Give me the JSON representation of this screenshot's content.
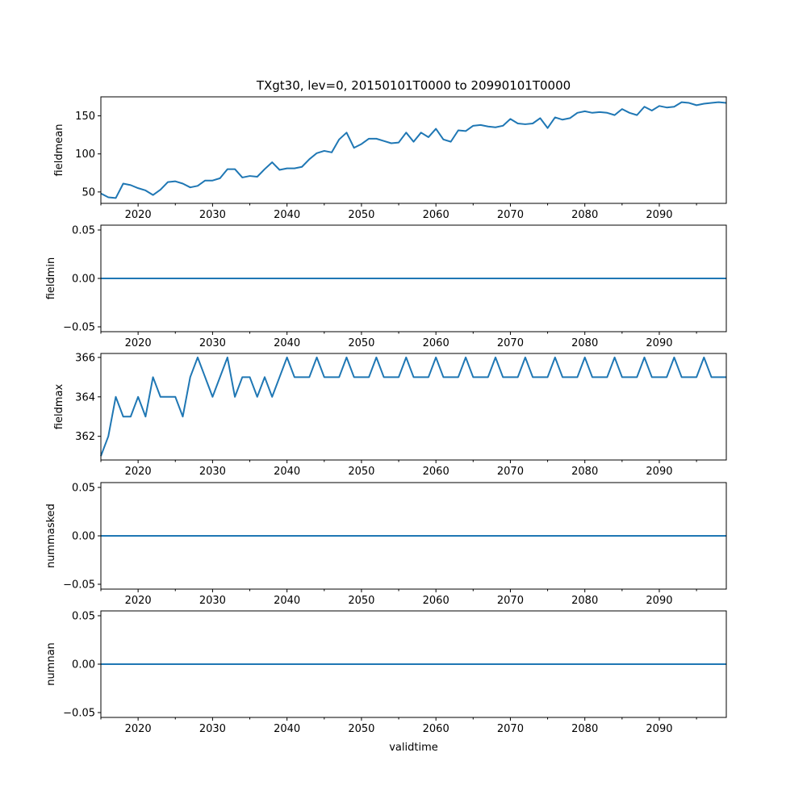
{
  "chart_data": [
    {
      "type": "line",
      "title": "TXgt30, lev=0, 20150101T0000 to 20990101T0000",
      "xlabel": "",
      "ylabel": "fieldmean",
      "xlim": [
        2015,
        2099
      ],
      "ylim": [
        35,
        175
      ],
      "xticks": [
        2020,
        2030,
        2040,
        2050,
        2060,
        2070,
        2080,
        2090
      ],
      "yticks": [
        50,
        100,
        150
      ],
      "x": [
        2015,
        2016,
        2017,
        2018,
        2019,
        2020,
        2021,
        2022,
        2023,
        2024,
        2025,
        2026,
        2027,
        2028,
        2029,
        2030,
        2031,
        2032,
        2033,
        2034,
        2035,
        2036,
        2037,
        2038,
        2039,
        2040,
        2041,
        2042,
        2043,
        2044,
        2045,
        2046,
        2047,
        2048,
        2049,
        2050,
        2051,
        2052,
        2053,
        2054,
        2055,
        2056,
        2057,
        2058,
        2059,
        2060,
        2061,
        2062,
        2063,
        2064,
        2065,
        2066,
        2067,
        2068,
        2069,
        2070,
        2071,
        2072,
        2073,
        2074,
        2075,
        2076,
        2077,
        2078,
        2079,
        2080,
        2081,
        2082,
        2083,
        2084,
        2085,
        2086,
        2087,
        2088,
        2089,
        2090,
        2091,
        2092,
        2093,
        2094,
        2095,
        2096,
        2097,
        2098,
        2099
      ],
      "series": [
        {
          "values": [
            48,
            43,
            42,
            61,
            59,
            55,
            52,
            46,
            53,
            63,
            64,
            61,
            56,
            58,
            65,
            65,
            68,
            80,
            80,
            69,
            71,
            70,
            80,
            89,
            79,
            81,
            81,
            83,
            93,
            101,
            104,
            102,
            119,
            128,
            108,
            113,
            120,
            120,
            117,
            114,
            115,
            128,
            116,
            128,
            122,
            133,
            119,
            116,
            131,
            130,
            137,
            138,
            136,
            135,
            137,
            146,
            140,
            139,
            140,
            147,
            134,
            148,
            145,
            147,
            154,
            156,
            154,
            155,
            154,
            151,
            159,
            154,
            151,
            162,
            157,
            163,
            161,
            162,
            168,
            167,
            164,
            166,
            167,
            168,
            167
          ]
        }
      ]
    },
    {
      "type": "line",
      "xlabel": "",
      "ylabel": "fieldmin",
      "xlim": [
        2015,
        2099
      ],
      "ylim": [
        -0.055,
        0.055
      ],
      "xticks": [
        2020,
        2030,
        2040,
        2050,
        2060,
        2070,
        2080,
        2090
      ],
      "yticks": [
        -0.05,
        0.0,
        0.05
      ],
      "ytick_labels": [
        "−0.05",
        "0.00",
        "0.05"
      ],
      "x": [
        2015,
        2099
      ],
      "series": [
        {
          "values": [
            0,
            0
          ]
        }
      ]
    },
    {
      "type": "line",
      "xlabel": "",
      "ylabel": "fieldmax",
      "xlim": [
        2015,
        2099
      ],
      "ylim": [
        360.8,
        366.2
      ],
      "xticks": [
        2020,
        2030,
        2040,
        2050,
        2060,
        2070,
        2080,
        2090
      ],
      "yticks": [
        362,
        364,
        366
      ],
      "x": [
        2015,
        2016,
        2017,
        2018,
        2019,
        2020,
        2021,
        2022,
        2023,
        2024,
        2025,
        2026,
        2027,
        2028,
        2029,
        2030,
        2031,
        2032,
        2033,
        2034,
        2035,
        2036,
        2037,
        2038,
        2039,
        2040,
        2041,
        2042,
        2043,
        2044,
        2045,
        2046,
        2047,
        2048,
        2049,
        2050,
        2051,
        2052,
        2053,
        2054,
        2055,
        2056,
        2057,
        2058,
        2059,
        2060,
        2061,
        2062,
        2063,
        2064,
        2065,
        2066,
        2067,
        2068,
        2069,
        2070,
        2071,
        2072,
        2073,
        2074,
        2075,
        2076,
        2077,
        2078,
        2079,
        2080,
        2081,
        2082,
        2083,
        2084,
        2085,
        2086,
        2087,
        2088,
        2089,
        2090,
        2091,
        2092,
        2093,
        2094,
        2095,
        2096,
        2097,
        2098,
        2099
      ],
      "series": [
        {
          "values": [
            361,
            362,
            364,
            363,
            363,
            364,
            363,
            365,
            364,
            364,
            364,
            363,
            365,
            366,
            365,
            364,
            365,
            366,
            364,
            365,
            365,
            364,
            365,
            364,
            365,
            366,
            365,
            365,
            365,
            366,
            365,
            365,
            365,
            366,
            365,
            365,
            365,
            366,
            365,
            365,
            365,
            366,
            365,
            365,
            365,
            366,
            365,
            365,
            365,
            366,
            365,
            365,
            365,
            366,
            365,
            365,
            365,
            366,
            365,
            365,
            365,
            366,
            365,
            365,
            365,
            366,
            365,
            365,
            365,
            366,
            365,
            365,
            365,
            366,
            365,
            365,
            365,
            366,
            365,
            365,
            365,
            366,
            365,
            365,
            365
          ]
        }
      ]
    },
    {
      "type": "line",
      "xlabel": "",
      "ylabel": "nummasked",
      "xlim": [
        2015,
        2099
      ],
      "ylim": [
        -0.055,
        0.055
      ],
      "xticks": [
        2020,
        2030,
        2040,
        2050,
        2060,
        2070,
        2080,
        2090
      ],
      "yticks": [
        -0.05,
        0.0,
        0.05
      ],
      "ytick_labels": [
        "−0.05",
        "0.00",
        "0.05"
      ],
      "x": [
        2015,
        2099
      ],
      "series": [
        {
          "values": [
            0,
            0
          ]
        }
      ]
    },
    {
      "type": "line",
      "xlabel": "validtime",
      "ylabel": "numnan",
      "xlim": [
        2015,
        2099
      ],
      "ylim": [
        -0.055,
        0.055
      ],
      "xticks": [
        2020,
        2030,
        2040,
        2050,
        2060,
        2070,
        2080,
        2090
      ],
      "yticks": [
        -0.05,
        0.0,
        0.05
      ],
      "ytick_labels": [
        "−0.05",
        "0.00",
        "0.05"
      ],
      "x": [
        2015,
        2099
      ],
      "series": [
        {
          "values": [
            0,
            0
          ]
        }
      ]
    }
  ]
}
